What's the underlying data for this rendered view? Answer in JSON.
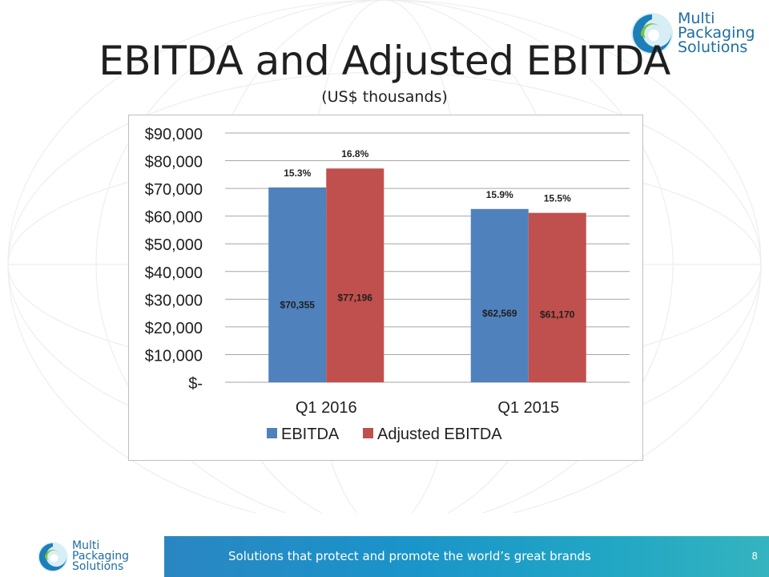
{
  "slide": {
    "title": "EBITDA and Adjusted EBITDA",
    "subtitle": "(US$ thousands)",
    "footer_tagline": "Solutions that protect and promote the world’s great brands",
    "page_number": "8"
  },
  "logo": {
    "line1": "Multi",
    "line2": "Packaging",
    "line3": "Solutions"
  },
  "colors": {
    "ebitda": "#4f81bd",
    "adjusted_ebitda": "#c0504d",
    "brand_blue": "#1d6ea0",
    "brand_green": "#7cc242"
  },
  "chart_data": {
    "type": "bar",
    "categories": [
      "Q1 2016",
      "Q1 2015"
    ],
    "series": [
      {
        "name": "EBITDA",
        "values": [
          70355,
          62569
        ],
        "value_labels": [
          "$70,355",
          "$62,569"
        ],
        "margin_labels": [
          "15.3%",
          "15.9%"
        ]
      },
      {
        "name": "Adjusted EBITDA",
        "values": [
          77196,
          61170
        ],
        "value_labels": [
          "$77,196",
          "$61,170"
        ],
        "margin_labels": [
          "16.8%",
          "15.5%"
        ]
      }
    ],
    "ylim": [
      0,
      90000
    ],
    "yticks": [
      0,
      10000,
      20000,
      30000,
      40000,
      50000,
      60000,
      70000,
      80000,
      90000
    ],
    "ytick_labels": [
      "$-",
      "$10,000",
      "$20,000",
      "$30,000",
      "$40,000",
      "$50,000",
      "$60,000",
      "$70,000",
      "$80,000",
      "$90,000"
    ],
    "grid": true,
    "legend": "bottom"
  }
}
